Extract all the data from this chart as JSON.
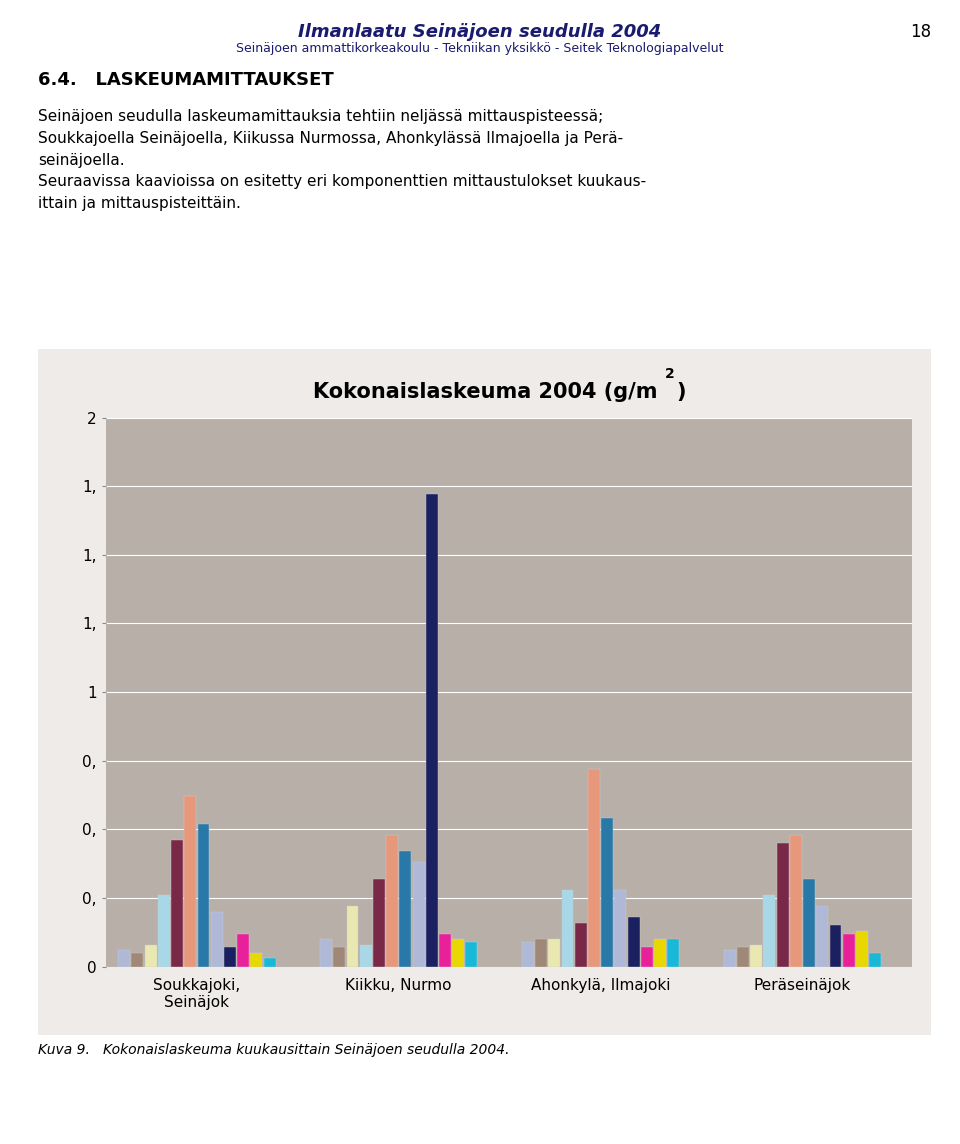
{
  "title_header": "Ilmanlaatu Seinäjoen seudulla 2004",
  "subtitle_header": "Seinäjoen ammattikorkeakoulu - Tekniikan yksikkö - Seitek Teknologiapalvelut",
  "page_num": "18",
  "section": "6.4.   LASKEUMAMITTAUKSET",
  "body1": "Seinäjoen seudulla laskeumamittauksia tehtiin neljässä mittauspisteessä;\nSoukkajoella Seinäjoella, Kiikussa Nurmossa, Ahonkylässä Ilmajoella ja Perä-\nseinäjoella.",
  "body2": "Seuraavissa kaavioissa on esitetty eri komponenttien mittaustulokset kuukaus-\nittain ja mittauspisteittäin.",
  "chart_title": "Kokonaislaskeuma 2004 (g/m",
  "chart_title_sup": "2",
  "chart_title_end": ")",
  "caption": "Kuva 9.   Kokonaislaskeuma kuukausittain Seinäjoen seudulla 2004.",
  "groups": [
    "Soukkajoki,\nSeinäjok",
    "Kiikku, Nurmo",
    "Ahonkylä, Ilmajoki",
    "Peräseinäjok"
  ],
  "bar_colors": [
    "#b0b8d8",
    "#a08878",
    "#e8e8b0",
    "#a8d8e8",
    "#7a2848",
    "#e8987a",
    "#2878a8",
    "#b0b8d8",
    "#1a2060",
    "#e8209a",
    "#e8d800",
    "#18b8d8"
  ],
  "data": {
    "Soukkajoki,\nSeinäjok": [
      0.06,
      0.05,
      0.08,
      0.26,
      0.46,
      0.62,
      0.52,
      0.2,
      0.07,
      0.12,
      0.05,
      0.03
    ],
    "Kiikku, Nurmo": [
      0.1,
      0.07,
      0.22,
      0.08,
      0.32,
      0.48,
      0.42,
      0.38,
      1.72,
      0.12,
      0.1,
      0.09
    ],
    "Ahonkylä, Ilmajoki": [
      0.09,
      0.1,
      0.1,
      0.28,
      0.16,
      0.72,
      0.54,
      0.28,
      0.18,
      0.07,
      0.1,
      0.1
    ],
    "Peräseinäjok": [
      0.06,
      0.07,
      0.08,
      0.26,
      0.45,
      0.48,
      0.32,
      0.22,
      0.15,
      0.12,
      0.13,
      0.05
    ]
  },
  "ylim": [
    0,
    2.0
  ],
  "yticks": [
    0,
    0.25,
    0.5,
    0.75,
    1.0,
    1.25,
    1.5,
    1.75,
    2.0
  ],
  "ytick_labels": [
    "0",
    "0,",
    "0,",
    "0,",
    "1",
    "1,",
    "1,",
    "1,",
    "2"
  ],
  "plot_bg": "#b8b0a8",
  "outer_bg": "#ffffff",
  "box_bg": "#eeebe8",
  "box_edge": "#666666"
}
